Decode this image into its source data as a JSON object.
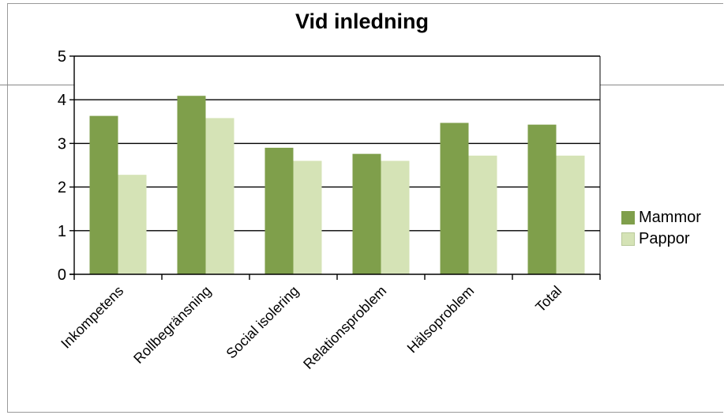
{
  "chart_data": {
    "type": "bar",
    "title": "Vid inledning",
    "xlabel": "",
    "ylabel": "",
    "categories": [
      "Inkompetens",
      "Rollbegränsning",
      "Social isolering",
      "Relationsproblem",
      "Hälsoproblem",
      "Total"
    ],
    "series": [
      {
        "name": "Mammor",
        "values": [
          3.63,
          4.09,
          2.9,
          2.76,
          3.47,
          3.43
        ],
        "color": "#7f9f4b"
      },
      {
        "name": "Pappor",
        "values": [
          2.28,
          3.58,
          2.6,
          2.6,
          2.72,
          2.72
        ],
        "color": "#d5e3b6"
      }
    ],
    "ylim": [
      0,
      5
    ],
    "yticks": [
      "0",
      "1",
      "2",
      "3",
      "4",
      "5"
    ],
    "grid": true,
    "legend_position": "right"
  }
}
